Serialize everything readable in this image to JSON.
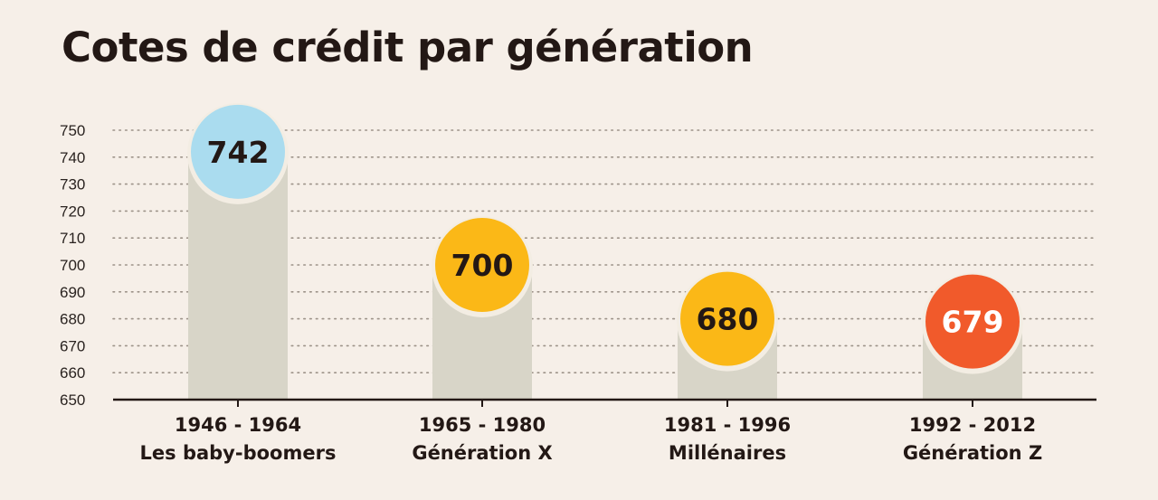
{
  "chart_title": "Cotes de crédit par génération",
  "colors": {
    "background": "#f6efe8",
    "bar": "#d8d5c8",
    "axis": "#231815",
    "grid": "#9c9288",
    "text": "#231815"
  },
  "chart_data": {
    "type": "bar",
    "title": "Cotes de crédit par génération",
    "xlabel": "",
    "ylabel": "",
    "ylim": [
      650,
      750
    ],
    "yticks": [
      650,
      660,
      670,
      680,
      690,
      700,
      710,
      720,
      730,
      740,
      750
    ],
    "grid": true,
    "categories": [
      {
        "years": "1946 - 1964",
        "name": "Les baby-boomers"
      },
      {
        "years": "1965 - 1980",
        "name": "Génération X"
      },
      {
        "years": "1981 - 1996",
        "name": "Millénaires"
      },
      {
        "years": "1992 - 2012",
        "name": "Génération Z"
      }
    ],
    "values": [
      742,
      700,
      680,
      679
    ],
    "value_labels": [
      "742",
      "700",
      "680",
      "679"
    ],
    "circle_colors": [
      "#aadcef",
      "#fbb817",
      "#fbb817",
      "#f15a2b"
    ],
    "value_text_colors": [
      "#231815",
      "#231815",
      "#231815",
      "#ffffff"
    ]
  }
}
